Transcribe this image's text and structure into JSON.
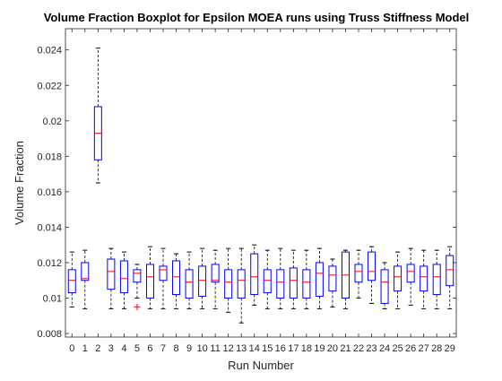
{
  "chart_data": {
    "type": "boxplot",
    "title": "Volume Fraction Boxplot for Epsilon MOEA runs using Truss Stiffness Model",
    "xlabel": "Run Number",
    "ylabel": "Volume Fraction",
    "ylim": [
      0.0078,
      0.0252
    ],
    "yticks": [
      "0.008",
      "0.01",
      "0.012",
      "0.014",
      "0.016",
      "0.018",
      "0.02",
      "0.022",
      "0.024"
    ],
    "categories": [
      "0",
      "1",
      "2",
      "3",
      "4",
      "5",
      "6",
      "7",
      "8",
      "9",
      "10",
      "11",
      "12",
      "13",
      "14",
      "15",
      "16",
      "17",
      "18",
      "19",
      "20",
      "21",
      "22",
      "23",
      "24",
      "25",
      "26",
      "27",
      "28",
      "29"
    ],
    "grid": false,
    "colors": {
      "box": "#0000ff",
      "median": "#ff0000",
      "whisker": "#000000",
      "outlier": "#ff0000",
      "axes": "#262626"
    },
    "boxes": [
      {
        "run": "0",
        "whisker_low": 0.0095,
        "q1": 0.0103,
        "median": 0.011,
        "q3": 0.0116,
        "whisker_high": 0.0126
      },
      {
        "run": "1",
        "whisker_low": 0.0094,
        "q1": 0.011,
        "median": 0.0111,
        "q3": 0.012,
        "whisker_high": 0.0127
      },
      {
        "run": "2",
        "whisker_low": 0.0165,
        "q1": 0.0178,
        "median": 0.0193,
        "q3": 0.0208,
        "whisker_high": 0.0241
      },
      {
        "run": "3",
        "whisker_low": 0.0094,
        "q1": 0.0105,
        "median": 0.0115,
        "q3": 0.0122,
        "whisker_high": 0.0128
      },
      {
        "run": "4",
        "whisker_low": 0.0094,
        "q1": 0.0103,
        "median": 0.0111,
        "q3": 0.0121,
        "whisker_high": 0.0126
      },
      {
        "run": "5",
        "whisker_low": 0.01,
        "q1": 0.0109,
        "median": 0.0114,
        "q3": 0.0116,
        "whisker_high": 0.0119,
        "outliers": [
          0.0095
        ]
      },
      {
        "run": "6",
        "whisker_low": 0.0094,
        "q1": 0.01,
        "median": 0.0112,
        "q3": 0.0119,
        "whisker_high": 0.0129
      },
      {
        "run": "7",
        "whisker_low": 0.0094,
        "q1": 0.011,
        "median": 0.0116,
        "q3": 0.0118,
        "whisker_high": 0.0128
      },
      {
        "run": "8",
        "whisker_low": 0.0094,
        "q1": 0.0102,
        "median": 0.0112,
        "q3": 0.0121,
        "whisker_high": 0.0125
      },
      {
        "run": "9",
        "whisker_low": 0.0094,
        "q1": 0.01,
        "median": 0.0109,
        "q3": 0.0116,
        "whisker_high": 0.0126
      },
      {
        "run": "10",
        "whisker_low": 0.0094,
        "q1": 0.0101,
        "median": 0.011,
        "q3": 0.0118,
        "whisker_high": 0.0128
      },
      {
        "run": "11",
        "whisker_low": 0.0094,
        "q1": 0.0109,
        "median": 0.011,
        "q3": 0.0119,
        "whisker_high": 0.0127
      },
      {
        "run": "12",
        "whisker_low": 0.0092,
        "q1": 0.01,
        "median": 0.0109,
        "q3": 0.0116,
        "whisker_high": 0.0128
      },
      {
        "run": "13",
        "whisker_low": 0.0086,
        "q1": 0.01,
        "median": 0.011,
        "q3": 0.0116,
        "whisker_high": 0.0128
      },
      {
        "run": "14",
        "whisker_low": 0.0096,
        "q1": 0.0102,
        "median": 0.0112,
        "q3": 0.0125,
        "whisker_high": 0.013
      },
      {
        "run": "15",
        "whisker_low": 0.0094,
        "q1": 0.0103,
        "median": 0.011,
        "q3": 0.0116,
        "whisker_high": 0.0127
      },
      {
        "run": "16",
        "whisker_low": 0.0094,
        "q1": 0.01,
        "median": 0.0109,
        "q3": 0.0116,
        "whisker_high": 0.0128
      },
      {
        "run": "17",
        "whisker_low": 0.0094,
        "q1": 0.01,
        "median": 0.011,
        "q3": 0.0117,
        "whisker_high": 0.0127
      },
      {
        "run": "18",
        "whisker_low": 0.0094,
        "q1": 0.01,
        "median": 0.0109,
        "q3": 0.0116,
        "whisker_high": 0.0127
      },
      {
        "run": "19",
        "whisker_low": 0.0094,
        "q1": 0.0101,
        "median": 0.0114,
        "q3": 0.012,
        "whisker_high": 0.0128
      },
      {
        "run": "20",
        "whisker_low": 0.0095,
        "q1": 0.0104,
        "median": 0.0113,
        "q3": 0.0118,
        "whisker_high": 0.0122
      },
      {
        "run": "21",
        "whisker_low": 0.0094,
        "q1": 0.01,
        "median": 0.0113,
        "q3": 0.0126,
        "whisker_high": 0.0127
      },
      {
        "run": "22",
        "whisker_low": 0.01,
        "q1": 0.0109,
        "median": 0.0115,
        "q3": 0.0119,
        "whisker_high": 0.0127
      },
      {
        "run": "23",
        "whisker_low": 0.0097,
        "q1": 0.011,
        "median": 0.0115,
        "q3": 0.0126,
        "whisker_high": 0.0129
      },
      {
        "run": "24",
        "whisker_low": 0.0094,
        "q1": 0.0097,
        "median": 0.0109,
        "q3": 0.0116,
        "whisker_high": 0.012
      },
      {
        "run": "25",
        "whisker_low": 0.0094,
        "q1": 0.0104,
        "median": 0.0112,
        "q3": 0.0118,
        "whisker_high": 0.0126
      },
      {
        "run": "26",
        "whisker_low": 0.0096,
        "q1": 0.0109,
        "median": 0.0115,
        "q3": 0.0119,
        "whisker_high": 0.0128
      },
      {
        "run": "27",
        "whisker_low": 0.0094,
        "q1": 0.0104,
        "median": 0.0112,
        "q3": 0.0118,
        "whisker_high": 0.0127
      },
      {
        "run": "28",
        "whisker_low": 0.0094,
        "q1": 0.0102,
        "median": 0.0112,
        "q3": 0.0119,
        "whisker_high": 0.0127
      },
      {
        "run": "29",
        "whisker_low": 0.0094,
        "q1": 0.0107,
        "median": 0.0116,
        "q3": 0.0124,
        "whisker_high": 0.0129
      }
    ]
  }
}
